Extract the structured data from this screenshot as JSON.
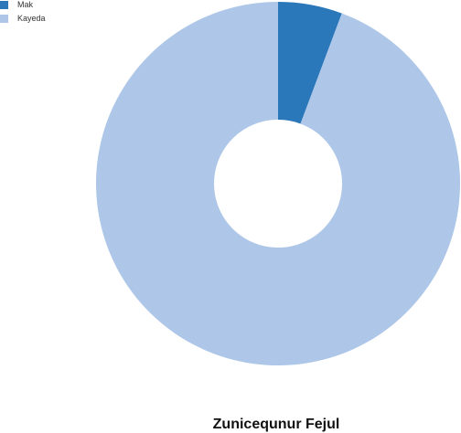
{
  "chart_data": {
    "type": "pie",
    "style": "donut",
    "title": "Zunicequnur Fejul",
    "categories": [
      "Mak",
      "Kayeda"
    ],
    "values": [
      5.7,
      94.3
    ],
    "colors": [
      "#2a77b9",
      "#aec7e8"
    ],
    "legend_placement": "top-left"
  }
}
